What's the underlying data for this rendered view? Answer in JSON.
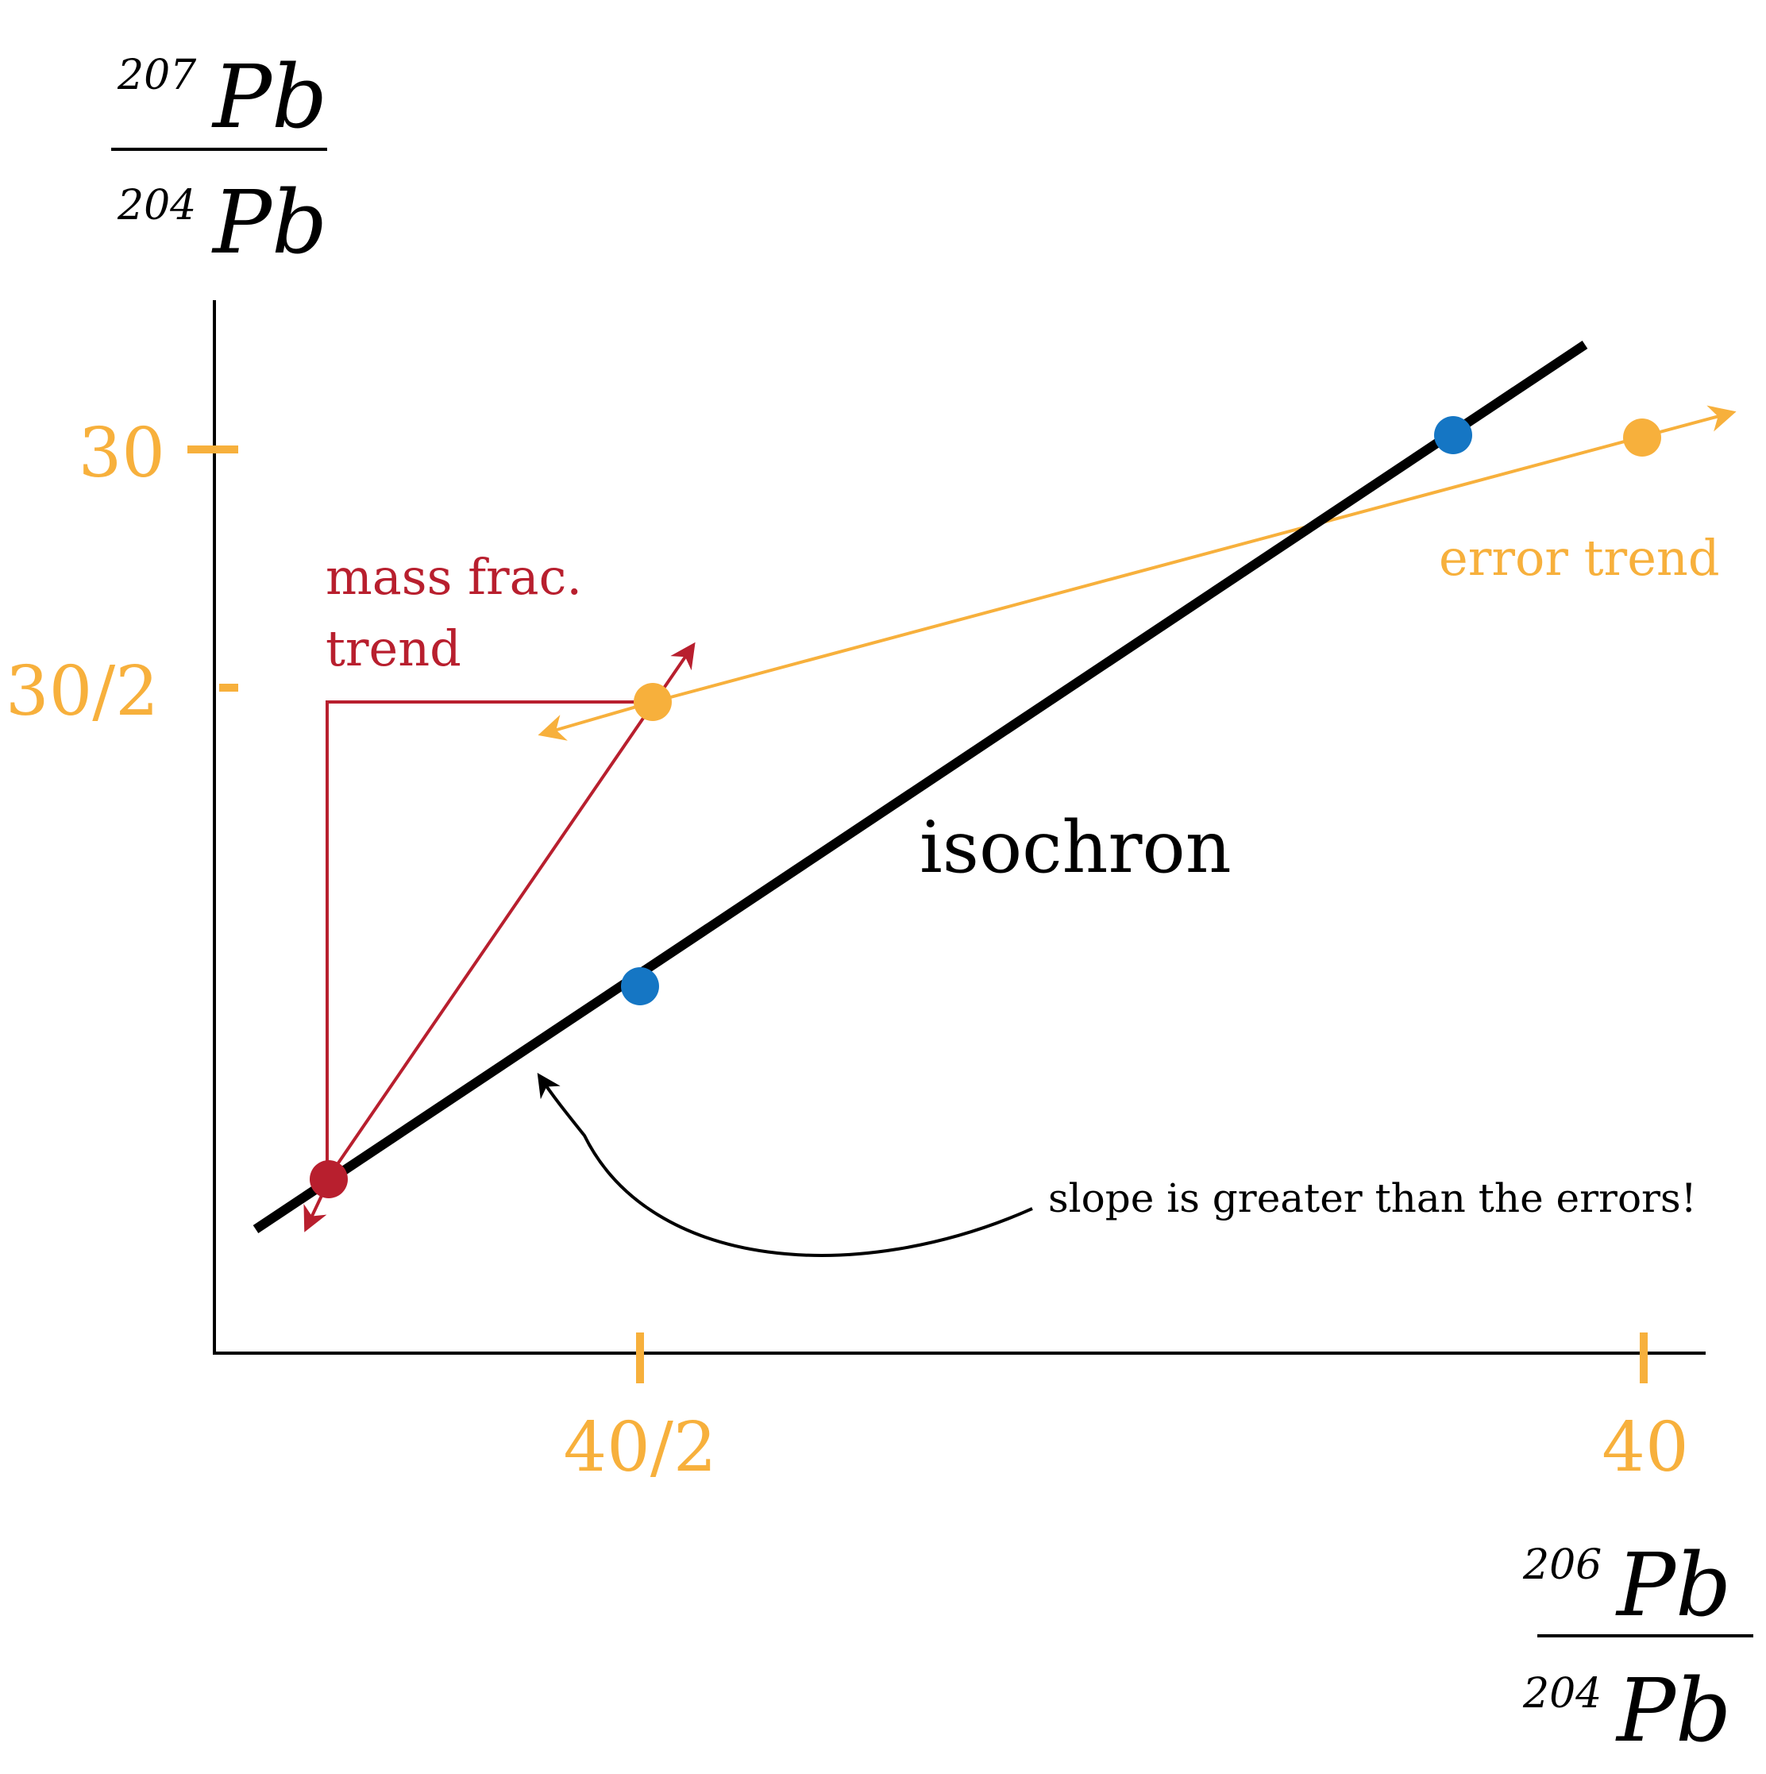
{
  "colors": {
    "axis": "#000000",
    "isochron": "#000000",
    "tick": "#F7B03C",
    "error_trend": "#F7B03C",
    "mass_frac": "#B81F2E",
    "sample_point": "#1576C4",
    "text": "#000000"
  },
  "y_axis_label": {
    "numerator_mass": "207",
    "numerator_element": "Pb",
    "denominator_mass": "204",
    "denominator_element": "Pb"
  },
  "x_axis_label": {
    "numerator_mass": "206",
    "numerator_element": "Pb",
    "denominator_mass": "204",
    "denominator_element": "Pb"
  },
  "y_ticks": [
    "30",
    "30/2"
  ],
  "x_ticks": [
    "40/2",
    "40"
  ],
  "labels": {
    "mass_frac_line1": "mass frac.",
    "mass_frac_line2": "trend",
    "error_trend": "error trend",
    "isochron": "isochron",
    "slope_note": "slope is greater than the errors!"
  }
}
